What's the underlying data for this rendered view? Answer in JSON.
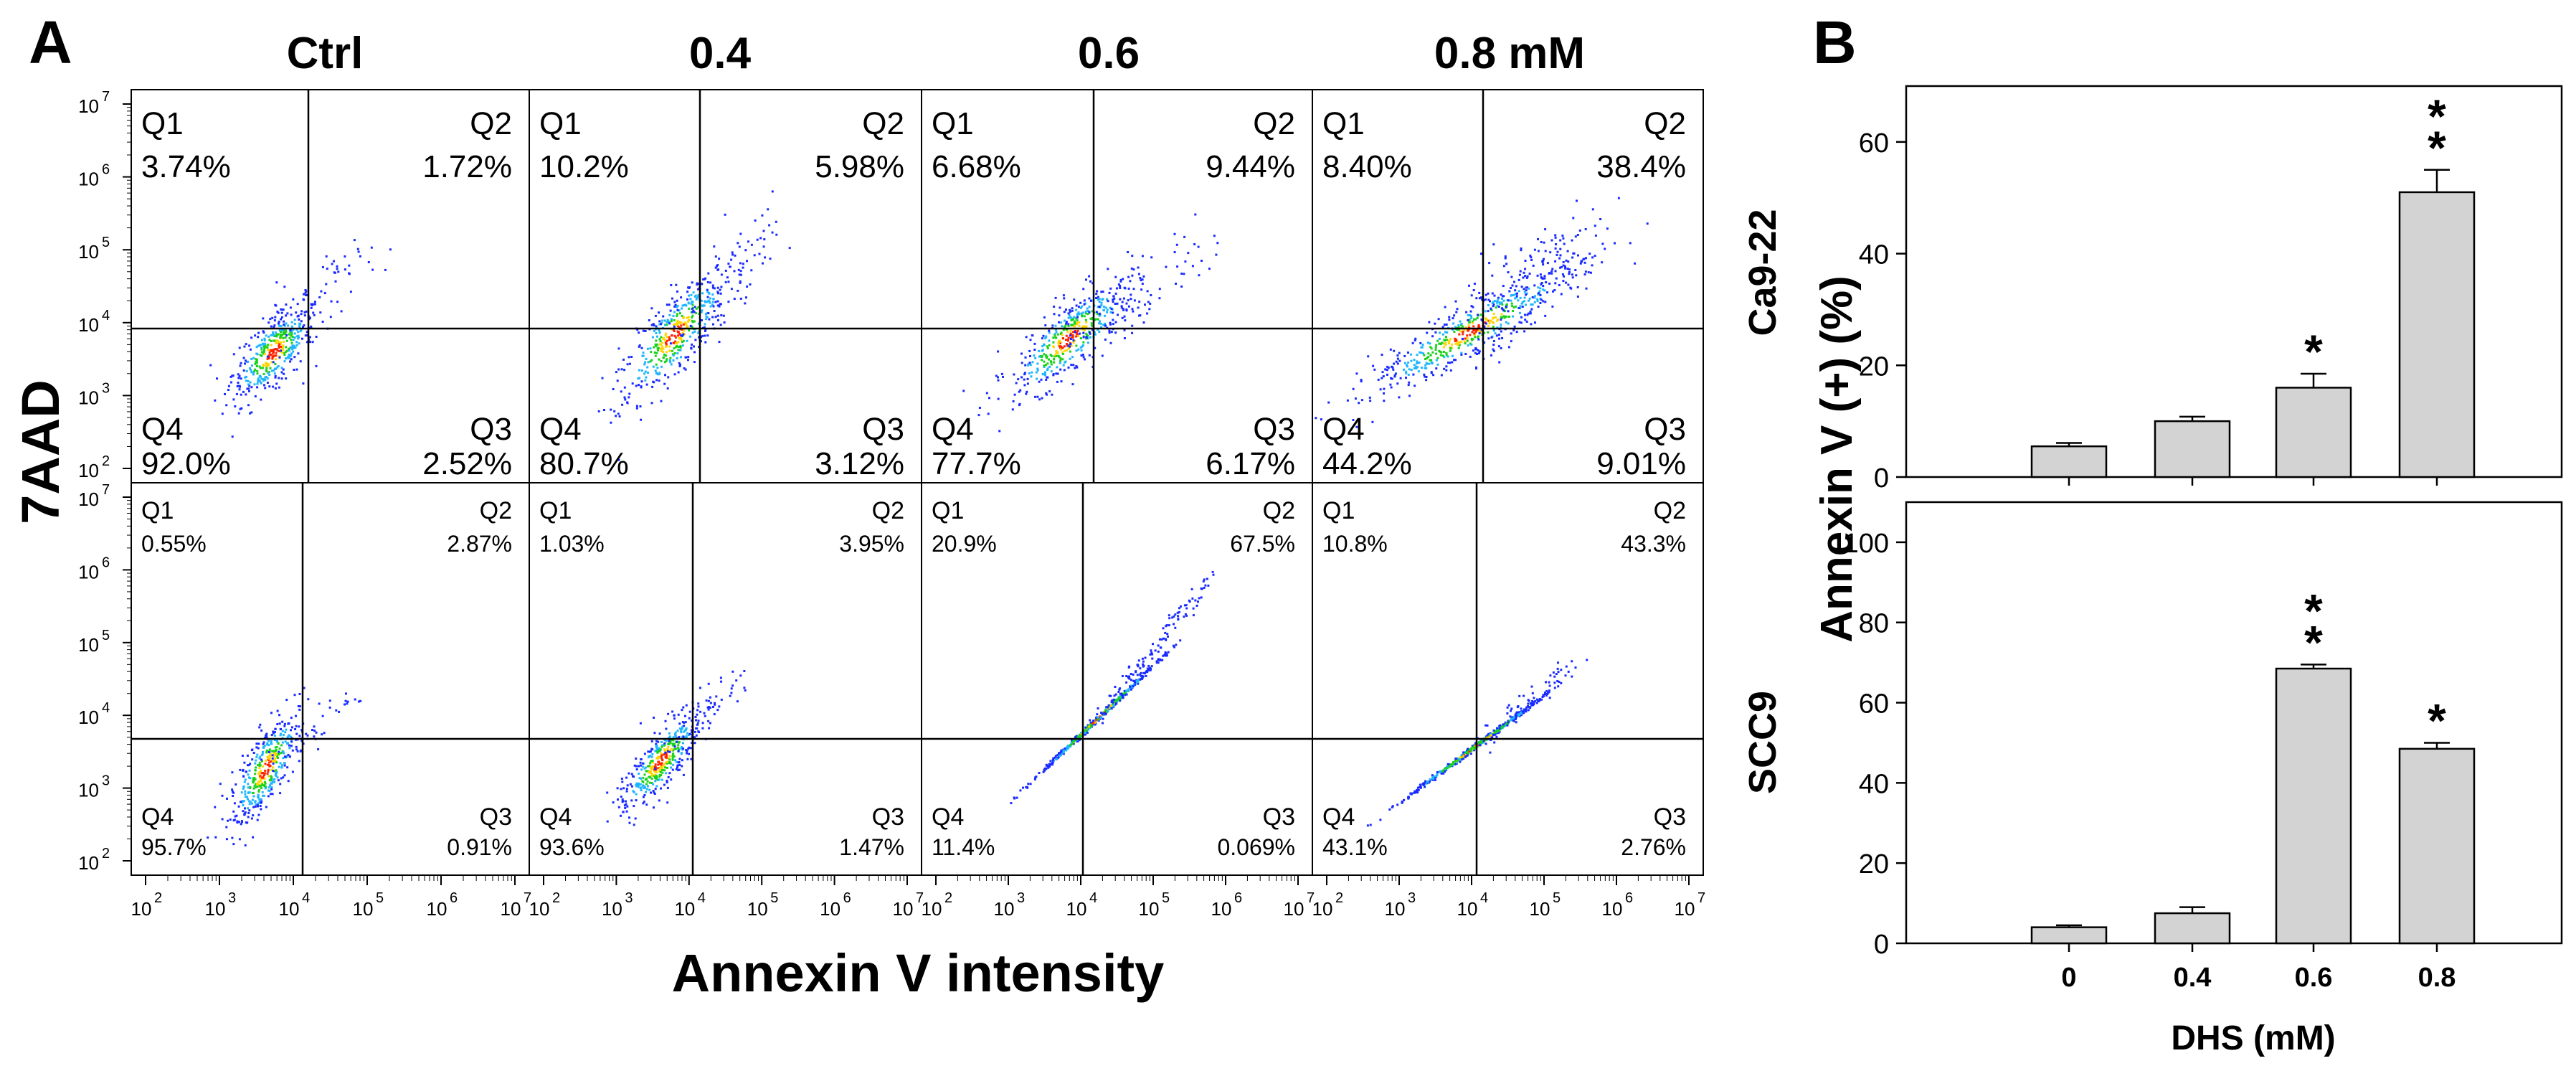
{
  "panel_a": {
    "label": "A",
    "column_titles": [
      "Ctrl",
      "0.4",
      "0.6",
      "0.8 mM"
    ],
    "y_label": "7AAD",
    "x_label": "Annexin V intensity",
    "tick_exponents": [
      "2",
      "3",
      "4",
      "5",
      "6",
      "7"
    ],
    "tick_base": "10",
    "top_row": [
      {
        "q1": "Q1",
        "q1v": "3.74%",
        "q2": "Q2",
        "q2v": "1.72%",
        "q3": "Q3",
        "q3v": "2.52%",
        "q4": "Q4",
        "q4v": "92.0%"
      },
      {
        "q1": "Q1",
        "q1v": "10.2%",
        "q2": "Q2",
        "q2v": "5.98%",
        "q3": "Q3",
        "q3v": "3.12%",
        "q4": "Q4",
        "q4v": "80.7%"
      },
      {
        "q1": "Q1",
        "q1v": "6.68%",
        "q2": "Q2",
        "q2v": "9.44%",
        "q3": "Q3",
        "q3v": "6.17%",
        "q4": "Q4",
        "q4v": "77.7%"
      },
      {
        "q1": "Q1",
        "q1v": "8.40%",
        "q2": "Q2",
        "q2v": "38.4%",
        "q3": "Q3",
        "q3v": "9.01%",
        "q4": "Q4",
        "q4v": "44.2%"
      }
    ],
    "bottom_row": [
      {
        "q1": "Q1",
        "q1v": "0.55%",
        "q2": "Q2",
        "q2v": "2.87%",
        "q3": "Q3",
        "q3v": "0.91%",
        "q4": "Q4",
        "q4v": "95.7%"
      },
      {
        "q1": "Q1",
        "q1v": "1.03%",
        "q2": "Q2",
        "q2v": "3.95%",
        "q3": "Q3",
        "q3v": "1.47%",
        "q4": "Q4",
        "q4v": "93.6%"
      },
      {
        "q1": "Q1",
        "q1v": "20.9%",
        "q2": "Q2",
        "q2v": "67.5%",
        "q3": "Q3",
        "q3v": "0.069%",
        "q4": "Q4",
        "q4v": "11.4%"
      },
      {
        "q1": "Q1",
        "q1v": "10.8%",
        "q2": "Q2",
        "q2v": "43.3%",
        "q3": "Q3",
        "q3v": "2.76%",
        "q4": "Q4",
        "q4v": "43.1%"
      }
    ]
  },
  "panel_b": {
    "label": "B",
    "y_label": "Annexin V (+) (%)",
    "x_label": "DHS (mM)",
    "row_labels": [
      "Ca9-22",
      "SCC9"
    ]
  },
  "colors": {
    "bar_fill": "#d3d3d3",
    "axis": "#000000",
    "density_low": "#1a2bff",
    "density_mid": "#19d219",
    "density_high": "#ff2200"
  },
  "chart_data": [
    {
      "type": "bar",
      "title": "Ca9-22",
      "categories": [
        "0",
        "0.4",
        "0.6",
        "0.8"
      ],
      "values": [
        5.5,
        10,
        16,
        51
      ],
      "errors": [
        0.6,
        0.8,
        2.5,
        4
      ],
      "significance": [
        "",
        "",
        "*",
        "**"
      ],
      "xlabel": "DHS (mM)",
      "ylabel": "Annexin V (+) (%)",
      "ylim": [
        0,
        70
      ],
      "yticks": [
        0,
        20,
        40,
        60
      ]
    },
    {
      "type": "bar",
      "title": "SCC9",
      "categories": [
        "0",
        "0.4",
        "0.6",
        "0.8"
      ],
      "values": [
        4,
        7.5,
        68.5,
        48.5
      ],
      "errors": [
        0.5,
        1.5,
        1,
        1.5
      ],
      "significance": [
        "",
        "",
        "**",
        "*"
      ],
      "xlabel": "DHS (mM)",
      "ylabel": "Annexin V (+) (%)",
      "ylim": [
        0,
        110
      ],
      "yticks": [
        0,
        20,
        40,
        60,
        80,
        100
      ]
    }
  ]
}
